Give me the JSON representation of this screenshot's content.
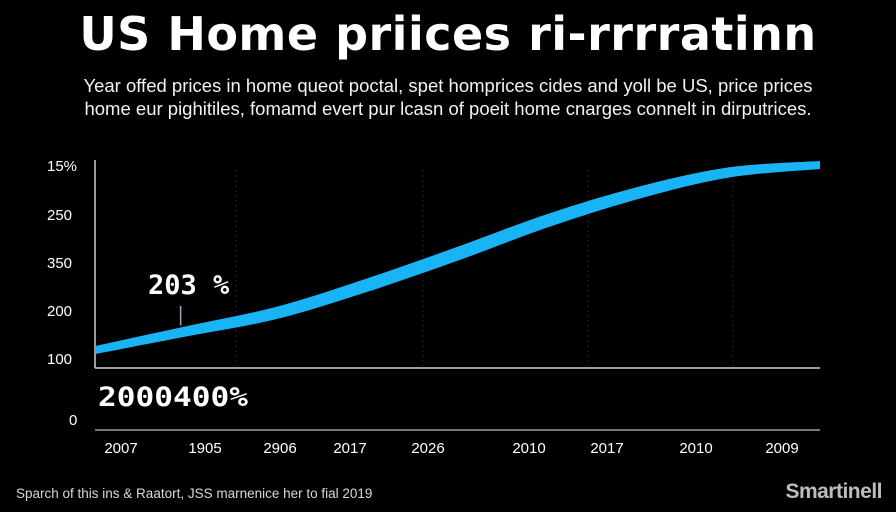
{
  "header": {
    "title": "US Home priices ri-rrrratinn",
    "subtitle_line1": "Year offed prices in home queot poctal, spet homprices cides and yoll be US, price prices",
    "subtitle_line2": "home eur pighitiles, fomamd evert pur lcasn of poeit home cnarges connelt in dirputrices."
  },
  "chart_data": {
    "type": "line",
    "title": "US Home priices ri-rrrratinn",
    "y_tick_labels": [
      "15%",
      "250",
      "350",
      "200",
      "100",
      "0"
    ],
    "x_tick_labels": [
      "2007",
      "1905",
      "2906",
      "2017",
      "2026",
      "2010",
      "2017",
      "2010",
      "2009"
    ],
    "series": [
      {
        "values": [
          0,
          0.1,
          0.2,
          0.35,
          0.52,
          0.7,
          0.85,
          0.96,
          1.0
        ],
        "color": "#19b4f5"
      }
    ],
    "annotations": [
      {
        "text": "203 %",
        "at_index": 1
      },
      {
        "text": "2000400%"
      }
    ],
    "grid": "vertical dashed",
    "legend": "none"
  },
  "footer": {
    "note": "Sparch of this ins & Raatort, JSS marnenice her to fial 2019",
    "watermark": "Smartinell"
  }
}
